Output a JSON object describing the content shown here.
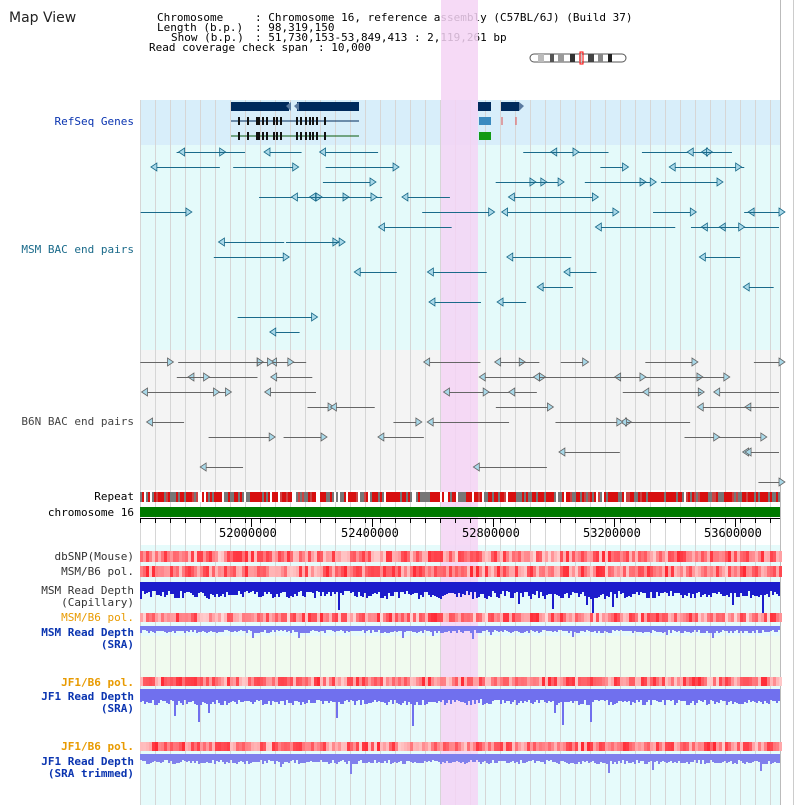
{
  "title": "Map View",
  "info": {
    "chromosome_key": "Chromosome",
    "chromosome_val": ": Chromosome 16, reference assembly (C57BL/6J) (Build 37)",
    "length_key": "Length (b.p.)",
    "length_val": ": 98,319,150",
    "show_key": "Show (b.p.)",
    "show_val": ": 51,730,153-53,849,413 : 2,119,261 bp",
    "span_key": "Read coverage check span",
    "span_val": ": 10,000"
  },
  "tracks": {
    "refseq": "RefSeq Genes",
    "msm_bac": "MSM BAC end pairs",
    "b6n_bac": "B6N BAC end pairs",
    "repeat": "Repeat",
    "chromosome": "chromosome 16",
    "dbsnp": "dbSNP(Mouse)",
    "msm_b6_pol_1": "MSM/B6 pol.",
    "msm_read_depth_cap_1": "MSM Read Depth",
    "msm_read_depth_cap_2": "(Capillary)",
    "msm_b6_pol_2": "MSM/B6 pol.",
    "msm_read_depth_sra_1": "MSM Read Depth",
    "msm_read_depth_sra_2": "(SRA)",
    "jf1_b6_pol_1": "JF1/B6 pol.",
    "jf1_read_depth_sra_1": "JF1 Read Depth",
    "jf1_read_depth_sra_2": "(SRA)",
    "jf1_b6_pol_2": "JF1/B6 pol.",
    "jf1_read_depth_trim_1": "JF1 Read Depth",
    "jf1_read_depth_trim_2": "(SRA trimmed)"
  },
  "ruler": {
    "labels": [
      "52000000",
      "52400000",
      "52800000",
      "53200000",
      "53600000"
    ]
  },
  "colors": {
    "highlight": "#f5d3f5",
    "refseq_bg": "#d8eefa",
    "msm_bg": "#e4fafa",
    "b6n_bg": "#f4f4f4",
    "gene": "#002a5c",
    "msm_feature": "#1a6a8a",
    "b6n_feature": "#666666",
    "chromosome_bar": "#007a00",
    "label_blue": "#0a34b0",
    "label_orange": "#e89a00",
    "label_dark": "#333333"
  }
}
